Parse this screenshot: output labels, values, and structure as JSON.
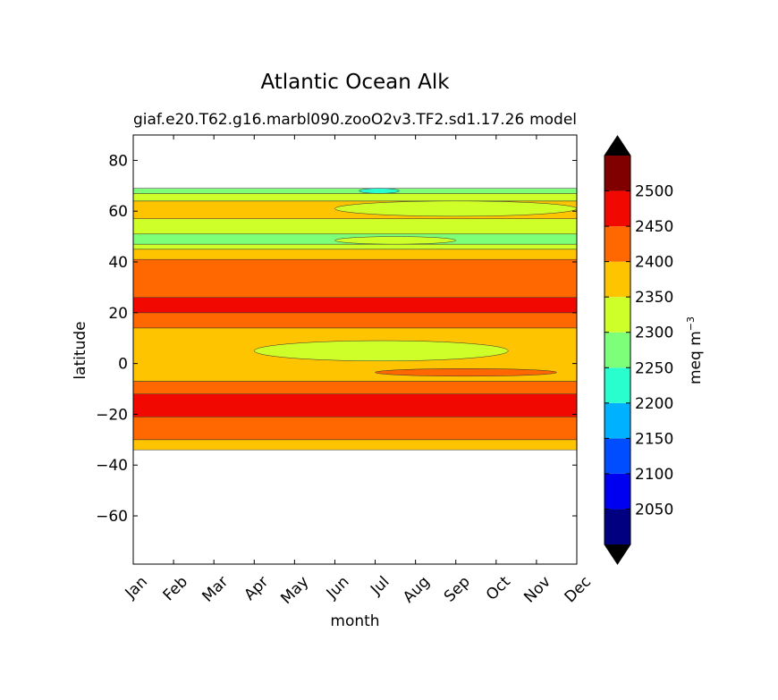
{
  "chart_data": {
    "type": "heatmap",
    "title": "Atlantic Ocean Alk",
    "subtitle_left": "giaf.e20.T62.g16.marbl090.zooO2v3.TF2.sd1.17.26",
    "subtitle_right": "model",
    "xlabel": "month",
    "ylabel": "latitude",
    "x_ticks": [
      "Jan",
      "Feb",
      "Mar",
      "Apr",
      "May",
      "Jun",
      "Jul",
      "Aug",
      "Sep",
      "Oct",
      "Nov",
      "Dec"
    ],
    "xlim": [
      1,
      12
    ],
    "y_ticks": [
      80,
      60,
      40,
      20,
      0,
      -20,
      -40,
      -60
    ],
    "y_tick_labels": [
      "80",
      "60",
      "40",
      "20",
      "0",
      "−20",
      "−40",
      "−60"
    ],
    "ylim": [
      -79,
      90
    ],
    "colorbar": {
      "label": "meq m",
      "label_superscript": "−3",
      "levels": [
        2000,
        2050,
        2100,
        2150,
        2200,
        2250,
        2300,
        2350,
        2400,
        2450,
        2500,
        2550
      ],
      "tick_values": [
        2050,
        2100,
        2150,
        2200,
        2250,
        2300,
        2350,
        2400,
        2450,
        2500
      ],
      "tick_labels": [
        "2050",
        "2100",
        "2150",
        "2200",
        "2250",
        "2300",
        "2350",
        "2400",
        "2450",
        "2500"
      ],
      "colors": [
        "#000080",
        "#0000f1",
        "#004dff",
        "#00b1ff",
        "#29ffce",
        "#7dff7a",
        "#ceff29",
        "#ffc400",
        "#ff6800",
        "#f10800",
        "#800000"
      ],
      "extend_low_color": "#000000",
      "extend_high_color": "#000000"
    },
    "bands": [
      {
        "lat_min": -34,
        "lat_max": -30,
        "value": 2375
      },
      {
        "lat_min": -30,
        "lat_max": -21,
        "value": 2425
      },
      {
        "lat_min": -21,
        "lat_max": -12,
        "value": 2475
      },
      {
        "lat_min": -12,
        "lat_max": -7,
        "value": 2425
      },
      {
        "lat_min": -7,
        "lat_max": 14,
        "value": 2375
      },
      {
        "lat_min": 14,
        "lat_max": 20,
        "value": 2425
      },
      {
        "lat_min": 20,
        "lat_max": 26,
        "value": 2475
      },
      {
        "lat_min": 26,
        "lat_max": 41,
        "value": 2425
      },
      {
        "lat_min": 41,
        "lat_max": 45,
        "value": 2375
      },
      {
        "lat_min": 45,
        "lat_max": 47,
        "value": 2325
      },
      {
        "lat_min": 47,
        "lat_max": 51,
        "value": 2275
      },
      {
        "lat_min": 51,
        "lat_max": 57,
        "value": 2325
      },
      {
        "lat_min": 57,
        "lat_max": 64,
        "value": 2375
      },
      {
        "lat_min": 64,
        "lat_max": 67,
        "value": 2325
      },
      {
        "lat_min": 67,
        "lat_max": 69,
        "value": 2275
      }
    ],
    "patches": [
      {
        "month_start": 4.0,
        "month_end": 10.3,
        "lat_min": 1,
        "lat_max": 9,
        "value": 2325
      },
      {
        "month_start": 6.0,
        "month_end": 12.0,
        "lat_min": 58,
        "lat_max": 64,
        "value": 2325
      },
      {
        "month_start": 6.0,
        "month_end": 9.0,
        "lat_min": 47,
        "lat_max": 50,
        "value": 2325
      },
      {
        "month_start": 6.6,
        "month_end": 7.6,
        "lat_min": 67,
        "lat_max": 69,
        "value": 2225
      },
      {
        "month_start": 7.0,
        "month_end": 11.5,
        "lat_min": -5,
        "lat_max": -2,
        "value": 2425
      }
    ]
  }
}
